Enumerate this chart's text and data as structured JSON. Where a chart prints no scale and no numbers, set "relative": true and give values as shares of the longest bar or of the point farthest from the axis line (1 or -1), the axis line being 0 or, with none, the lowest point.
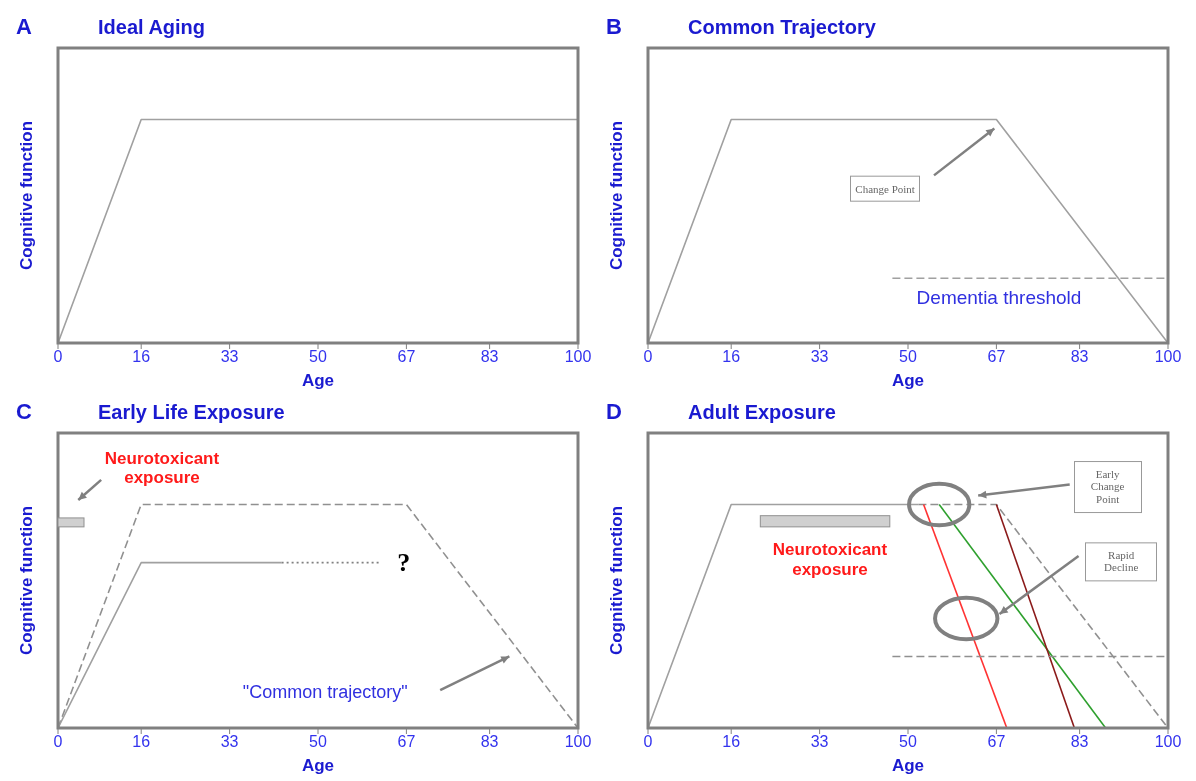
{
  "chart_data": [
    {
      "type": "line",
      "relative": true,
      "title": "Ideal Aging",
      "xlabel": "Age",
      "ylabel": "Cognitive function",
      "xlim": [
        0,
        100
      ],
      "xticks": [
        0,
        16,
        33,
        50,
        67,
        83,
        100
      ],
      "annotations": [
        "A"
      ],
      "series": [
        {
          "color": "#a0a0a0",
          "x": [
            0,
            16,
            100
          ],
          "values": [
            0,
            1,
            1
          ]
        }
      ]
    },
    {
      "type": "line",
      "relative": true,
      "title": "Common Trajectory",
      "xlabel": "Age",
      "ylabel": "Cognitive function",
      "xlim": [
        0,
        100
      ],
      "xticks": [
        0,
        16,
        33,
        50,
        67,
        83,
        100
      ],
      "annotations": [
        "B",
        "Change Point",
        "Dementia threshold"
      ],
      "series": [
        {
          "color": "#a0a0a0",
          "x": [
            0,
            16,
            67,
            100
          ],
          "values": [
            0,
            1,
            1,
            0
          ]
        },
        {
          "color": "#a0a0a0",
          "x": [
            47,
            100
          ],
          "values": [
            0.29,
            0.29
          ],
          "line_style": "dashed"
        }
      ]
    },
    {
      "type": "line",
      "relative": true,
      "title": "Early Life Exposure",
      "xlabel": "Age",
      "ylabel": "Cognitive function",
      "xlim": [
        0,
        100
      ],
      "xticks": [
        0,
        16,
        33,
        50,
        67,
        83,
        100
      ],
      "annotations": [
        "C",
        "Neurotoxicant exposure",
        "?",
        "\"Common trajectory\""
      ],
      "series": [
        {
          "color": "#909090",
          "x": [
            0,
            16,
            67,
            100
          ],
          "values": [
            0,
            1,
            1,
            0
          ],
          "line_style": "dashed"
        },
        {
          "color": "#a0a0a0",
          "x": [
            0,
            16,
            43
          ],
          "values": [
            0,
            0.74,
            0.74
          ]
        },
        {
          "color": "#808080",
          "x": [
            43,
            62
          ],
          "values": [
            0.74,
            0.74
          ],
          "line_style": "dotted"
        }
      ]
    },
    {
      "type": "line",
      "relative": true,
      "title": "Adult Exposure",
      "xlabel": "Age",
      "ylabel": "Cognitive function",
      "xlim": [
        0,
        100
      ],
      "xticks": [
        0,
        16,
        33,
        50,
        67,
        83,
        100
      ],
      "annotations": [
        "D",
        "Neurotoxicant exposure",
        "Early Change Point",
        "Rapid Decline"
      ],
      "series": [
        {
          "color": "#a0a0a0",
          "x": [
            0,
            16,
            52
          ],
          "values": [
            0,
            1,
            1
          ]
        },
        {
          "color": "#909090",
          "x": [
            52,
            67,
            100
          ],
          "values": [
            1,
            1,
            0
          ],
          "line_style": "dashed"
        },
        {
          "color": "#ff3333",
          "x": [
            53,
            69
          ],
          "values": [
            1,
            0
          ]
        },
        {
          "color": "#2ea02e",
          "x": [
            56,
            88
          ],
          "values": [
            1,
            0
          ]
        },
        {
          "color": "#8b1a1a",
          "x": [
            67,
            82
          ],
          "values": [
            1,
            0
          ]
        },
        {
          "color": "#909090",
          "x": [
            47,
            100
          ],
          "values": [
            0.32,
            0.32
          ],
          "line_style": "dashed"
        }
      ]
    }
  ]
}
